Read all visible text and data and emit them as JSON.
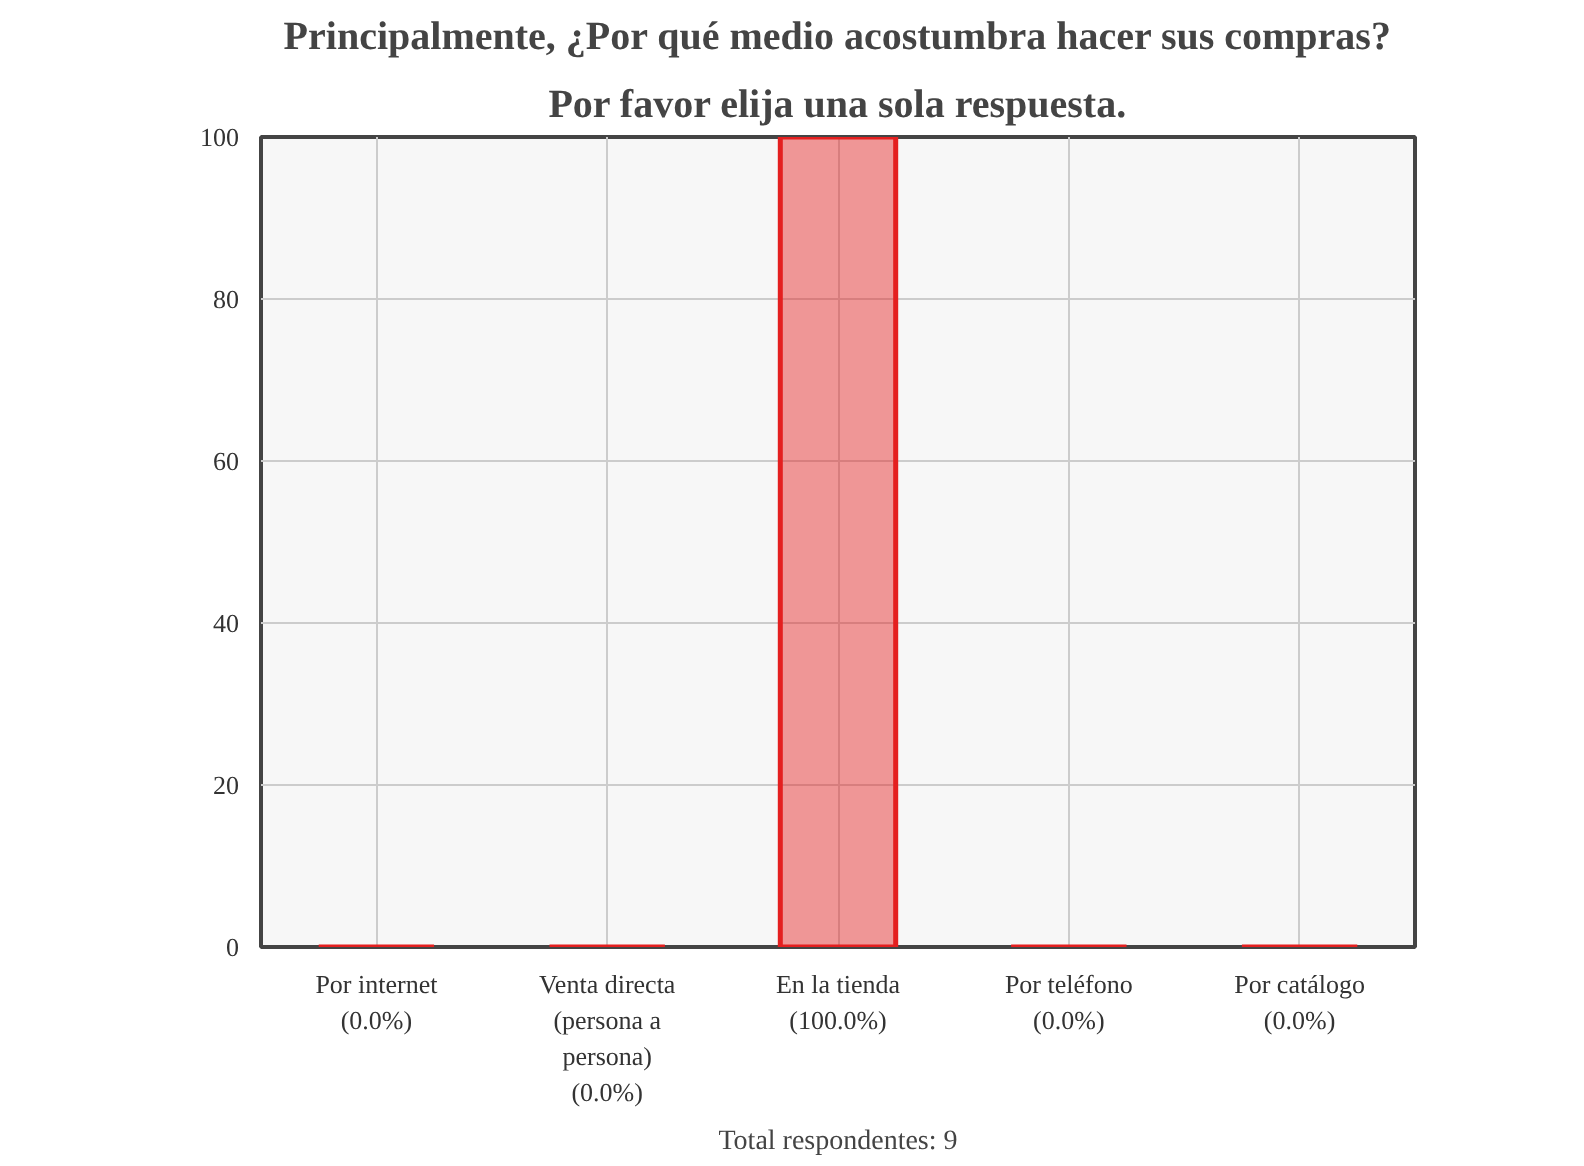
{
  "chart_data": {
    "type": "bar",
    "title": "Principalmente, ¿Por qué medio acostumbra hacer sus compras?",
    "subtitle": "Por favor elija una sola respuesta.",
    "categories": [
      "Por internet\n(0.0%)",
      "Venta directa\n(persona a\npersona)\n(0.0%)",
      "En la tienda\n(100.0%)",
      "Por teléfono\n(0.0%)",
      "Por catálogo\n(0.0%)"
    ],
    "values": [
      0,
      0,
      100,
      0,
      0
    ],
    "color": "#e41f1f",
    "ylim": [
      0,
      100
    ],
    "yticks": [
      0,
      20,
      40,
      60,
      80,
      100
    ],
    "grid": true,
    "annotations": [
      "Total respondentes: 9"
    ]
  }
}
